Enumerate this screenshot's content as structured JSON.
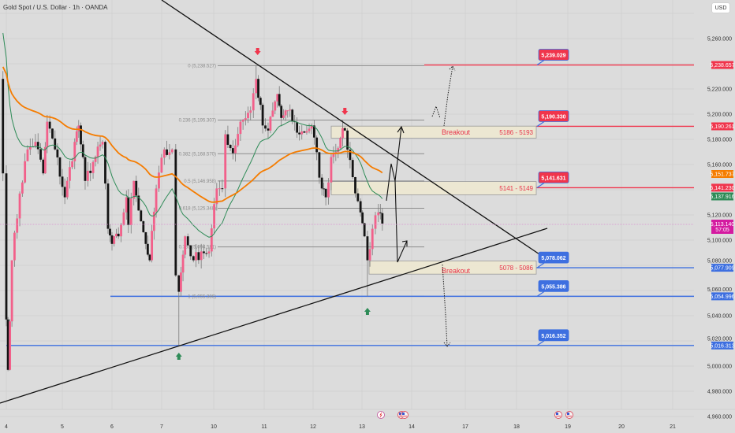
{
  "header": {
    "title": "Gold Spot / U.S. Dollar · 1h · OANDA",
    "currency_button": "USD"
  },
  "colors": {
    "background": "#dcdcdc",
    "up_candle": "#f2608a",
    "down_candle": "#141414",
    "wick": "#7a7a7a",
    "ema_fast": "#2e8b57",
    "ema_slow": "#f57c00",
    "resistance": "#f0354c",
    "support": "#3d6fe0",
    "current_price": "#d41aa0",
    "zone_fill": "#ede8d0"
  },
  "chart_data": {
    "type": "candlestick",
    "title": "Gold Spot / U.S. Dollar · 1h · OANDA",
    "ylim": [
      4950,
      5290
    ],
    "y_ticks": [
      "5,260.000",
      "5,220.000",
      "5,200.000",
      "5,180.000",
      "5,160.000",
      "5,120.000",
      "5,100.000",
      "5,080.000",
      "5,060.000",
      "5,040.000",
      "5,020.000",
      "5,000.000",
      "4,980.000",
      "4,960.000"
    ],
    "y_tick_values": [
      5260,
      5220,
      5200,
      5180,
      5160,
      5120,
      5100,
      5080,
      5060,
      5040,
      5020,
      5000,
      4980,
      4960
    ],
    "x_ticks": [
      "4",
      "5",
      "6",
      "7",
      "10",
      "11",
      "12",
      "13",
      "14",
      "17",
      "18",
      "19",
      "20",
      "21"
    ],
    "grid": true,
    "price_path": [
      [
        3.92,
        5228
      ],
      [
        3.94,
        5153
      ],
      [
        4.0,
        5037
      ],
      [
        4.03,
        4997
      ],
      [
        4.1,
        5084
      ],
      [
        4.24,
        5137
      ],
      [
        4.38,
        5172
      ],
      [
        4.52,
        5178
      ],
      [
        4.66,
        5153
      ],
      [
        4.73,
        5194
      ],
      [
        4.87,
        5172
      ],
      [
        5.05,
        5134
      ],
      [
        5.25,
        5178
      ],
      [
        5.33,
        5191
      ],
      [
        5.46,
        5147
      ],
      [
        5.62,
        5162
      ],
      [
        5.81,
        5178
      ],
      [
        5.92,
        5109
      ],
      [
        6.0,
        5097
      ],
      [
        6.13,
        5103
      ],
      [
        6.29,
        5134
      ],
      [
        6.33,
        5112
      ],
      [
        6.44,
        5147
      ],
      [
        6.68,
        5097
      ],
      [
        6.76,
        5084
      ],
      [
        6.89,
        5141
      ],
      [
        7.05,
        5172
      ],
      [
        7.2,
        5172
      ],
      [
        7.27,
        5072
      ],
      [
        7.33,
        5059
      ],
      [
        7.45,
        5103
      ],
      [
        7.61,
        5084
      ],
      [
        7.76,
        5091
      ],
      [
        7.91,
        5091
      ],
      [
        10.06,
        5141
      ],
      [
        10.17,
        5141
      ],
      [
        10.23,
        5184
      ],
      [
        10.38,
        5169
      ],
      [
        10.53,
        5194
      ],
      [
        10.73,
        5203
      ],
      [
        10.84,
        5228
      ],
      [
        10.97,
        5191
      ],
      [
        11.08,
        5187
      ],
      [
        11.27,
        5216
      ],
      [
        11.35,
        5197
      ],
      [
        11.48,
        5203
      ],
      [
        11.72,
        5184
      ],
      [
        11.97,
        5191
      ],
      [
        12.18,
        5141
      ],
      [
        12.26,
        5134
      ],
      [
        12.37,
        5166
      ],
      [
        12.56,
        5181
      ],
      [
        12.65,
        5187
      ],
      [
        12.81,
        5150
      ],
      [
        12.97,
        5122
      ],
      [
        13.05,
        5103
      ],
      [
        13.11,
        5084
      ],
      [
        13.21,
        5109
      ],
      [
        13.33,
        5122
      ],
      [
        13.41,
        5113.14
      ]
    ],
    "swing_extremes": [
      {
        "day": 4.03,
        "low": 4996
      },
      {
        "day": 7.33,
        "low": 5016.35
      },
      {
        "day": 10.84,
        "high": 5238.53
      },
      {
        "day": 13.11,
        "low": 5055.39
      }
    ],
    "series": [
      {
        "type": "ema",
        "color": "#2e8b57"
      },
      {
        "type": "ema",
        "color": "#f57c00"
      }
    ],
    "fibonacci": [
      {
        "label": "0 (5,238.527)",
        "price": 5238.527
      },
      {
        "label": "0.236 (5,195.307)",
        "price": 5195.307
      },
      {
        "label": "0.382 (5,168.570)",
        "price": 5168.57
      },
      {
        "label": "0.5 (5,146.958)",
        "price": 5146.958
      },
      {
        "label": "0.618 (5,125.348)",
        "price": 5125.348
      },
      {
        "label": "0.786 (5,094.581)",
        "price": 5094.581
      },
      {
        "label": "1 (5,055.386)",
        "price": 5055.386
      }
    ],
    "zones": [
      {
        "label": "Breakout",
        "range": "5186 - 5193",
        "low": 5186,
        "high": 5193
      },
      {
        "label": "",
        "range": "5141 - 5149",
        "low": 5141,
        "high": 5149
      },
      {
        "label": "Breakout",
        "range": "5078 - 5086",
        "low": 5078,
        "high": 5086
      }
    ],
    "levels": [
      {
        "callout": "5,239.029",
        "axis_tag": "5,238.657",
        "price": 5239.029,
        "kind": "resistance"
      },
      {
        "callout": "5,190.330",
        "axis_tag": "5,190.261",
        "price": 5190.33,
        "kind": "resistance"
      },
      {
        "callout": "5,141.631",
        "axis_tag": "5,141.230",
        "price": 5141.631,
        "kind": "resistance"
      },
      {
        "callout": "5,078.062",
        "axis_tag": "5,077.909",
        "price": 5078.062,
        "kind": "support"
      },
      {
        "callout": "5,055.386",
        "axis_tag": "5,054.996",
        "price": 5055.386,
        "kind": "support"
      },
      {
        "callout": "5,016.352",
        "axis_tag": "5,016.313",
        "price": 5016.352,
        "kind": "support"
      }
    ],
    "indicator_tags": [
      {
        "value": "5,151.737",
        "color": "#f57c00"
      },
      {
        "value": "5,137.916",
        "color": "#2e8b57"
      }
    ],
    "current_price": {
      "value": "5,113.140",
      "countdown": "57:05",
      "price": 5113.14
    },
    "markers": [
      {
        "icon": "arrow-down-icon",
        "color": "#f0354c",
        "day": 10.87
      },
      {
        "icon": "arrow-down-icon",
        "color": "#f0354c",
        "day": 12.65
      },
      {
        "icon": "arrow-up-icon",
        "color": "#2e8b57",
        "day": 7.33
      },
      {
        "icon": "arrow-up-icon",
        "color": "#2e8b57",
        "day": 13.11
      }
    ],
    "events": [
      {
        "icon": "lightning-icon"
      },
      {
        "icon": "us-flag-icon"
      },
      {
        "icon": "us-flag-icon"
      },
      {
        "icon": "us-flag-icon"
      },
      {
        "icon": "us-flag-icon"
      }
    ]
  }
}
